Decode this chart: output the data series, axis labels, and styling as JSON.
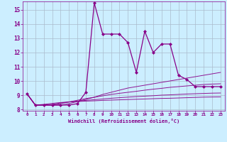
{
  "xlabel": "Windchill (Refroidissement éolien,°C)",
  "background_color": "#cceeff",
  "grid_color": "#aabbcc",
  "line_color": "#880088",
  "xlim": [
    -0.5,
    23.5
  ],
  "ylim": [
    7.9,
    15.6
  ],
  "yticks": [
    8,
    9,
    10,
    11,
    12,
    13,
    14,
    15
  ],
  "xticks": [
    0,
    1,
    2,
    3,
    4,
    5,
    6,
    7,
    8,
    9,
    10,
    11,
    12,
    13,
    14,
    15,
    16,
    17,
    18,
    19,
    20,
    21,
    22,
    23
  ],
  "main_series": [
    9.1,
    8.3,
    8.3,
    8.3,
    8.3,
    8.3,
    8.4,
    9.2,
    15.5,
    13.3,
    13.3,
    13.3,
    12.7,
    10.6,
    13.5,
    12.0,
    12.6,
    12.6,
    10.4,
    10.1,
    9.6,
    9.6,
    9.6,
    9.6
  ],
  "flat_series": [
    [
      9.1,
      8.3,
      8.3,
      8.3,
      8.3,
      8.4,
      8.55,
      8.7,
      8.85,
      9.05,
      9.2,
      9.35,
      9.5,
      9.6,
      9.7,
      9.8,
      9.9,
      10.0,
      10.1,
      10.2,
      10.3,
      10.4,
      10.5,
      10.6
    ],
    [
      9.1,
      8.3,
      8.3,
      8.3,
      8.4,
      8.52,
      8.64,
      8.76,
      8.85,
      8.95,
      9.05,
      9.13,
      9.2,
      9.27,
      9.35,
      9.42,
      9.48,
      9.55,
      9.6,
      9.65,
      9.7,
      9.75,
      9.78,
      9.8
    ],
    [
      9.1,
      8.3,
      8.3,
      8.35,
      8.45,
      8.52,
      8.58,
      8.63,
      8.68,
      8.73,
      8.78,
      8.82,
      8.86,
      8.9,
      8.93,
      8.96,
      9.0,
      9.02,
      9.05,
      9.08,
      9.1,
      9.12,
      9.14,
      9.15
    ],
    [
      9.1,
      8.3,
      8.35,
      8.42,
      8.48,
      8.52,
      8.55,
      8.58,
      8.6,
      8.63,
      8.65,
      8.67,
      8.69,
      8.71,
      8.73,
      8.75,
      8.77,
      8.78,
      8.8,
      8.82,
      8.84,
      8.86,
      8.87,
      8.88
    ]
  ]
}
